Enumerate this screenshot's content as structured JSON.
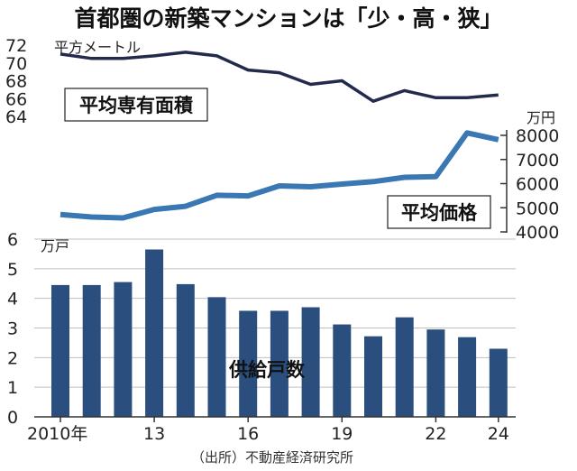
{
  "title": "首都圏の新築マンションは「少・高・狭」",
  "source": "（出所）不動産経済研究所",
  "colors": {
    "area_line": "#232b4d",
    "price_line": "#3a78b4",
    "bars": "#2a4e7d",
    "axis": "#333333"
  },
  "chart_data": [
    {
      "type": "line",
      "label": "平均専有面積",
      "unit": "平方メートル",
      "axis_side": "left",
      "ylim": [
        64,
        72
      ],
      "yticks": [
        "72",
        "70",
        "68",
        "66",
        "64"
      ],
      "x": [
        2010,
        2011,
        2012,
        2013,
        2014,
        2015,
        2016,
        2017,
        2018,
        2019,
        2020,
        2021,
        2022,
        2023,
        2024
      ],
      "values": [
        71.0,
        70.5,
        70.5,
        70.8,
        71.2,
        70.8,
        69.2,
        68.9,
        67.6,
        68.0,
        65.7,
        66.9,
        66.1,
        66.1,
        66.4
      ]
    },
    {
      "type": "line",
      "label": "平均価格",
      "unit": "万円",
      "axis_side": "right",
      "ylim": [
        4000,
        8000
      ],
      "yticks": [
        "8000",
        "7000",
        "6000",
        "5000",
        "4000"
      ],
      "x": [
        2010,
        2011,
        2012,
        2013,
        2014,
        2015,
        2016,
        2017,
        2018,
        2019,
        2020,
        2021,
        2022,
        2023,
        2024
      ],
      "values": [
        4716,
        4616,
        4580,
        4929,
        5060,
        5518,
        5490,
        5908,
        5871,
        5980,
        6083,
        6260,
        6288,
        8101,
        7820
      ]
    },
    {
      "type": "bar",
      "label": "供給戸数",
      "unit": "万戸",
      "ylim": [
        0,
        6
      ],
      "yticks": [
        "6",
        "5",
        "4",
        "3",
        "2",
        "1",
        "0"
      ],
      "x": [
        2010,
        2011,
        2012,
        2013,
        2014,
        2015,
        2016,
        2017,
        2018,
        2019,
        2020,
        2021,
        2022,
        2023,
        2024
      ],
      "values": [
        4.45,
        4.45,
        4.55,
        5.65,
        4.48,
        4.04,
        3.58,
        3.58,
        3.7,
        3.12,
        2.72,
        3.36,
        2.95,
        2.69,
        2.3
      ],
      "xtick_labels": [
        {
          "year": 2010,
          "text": "2010年"
        },
        {
          "year": 2013,
          "text": "13"
        },
        {
          "year": 2016,
          "text": "16"
        },
        {
          "year": 2019,
          "text": "19"
        },
        {
          "year": 2022,
          "text": "22"
        },
        {
          "year": 2024,
          "text": "24"
        }
      ]
    }
  ]
}
